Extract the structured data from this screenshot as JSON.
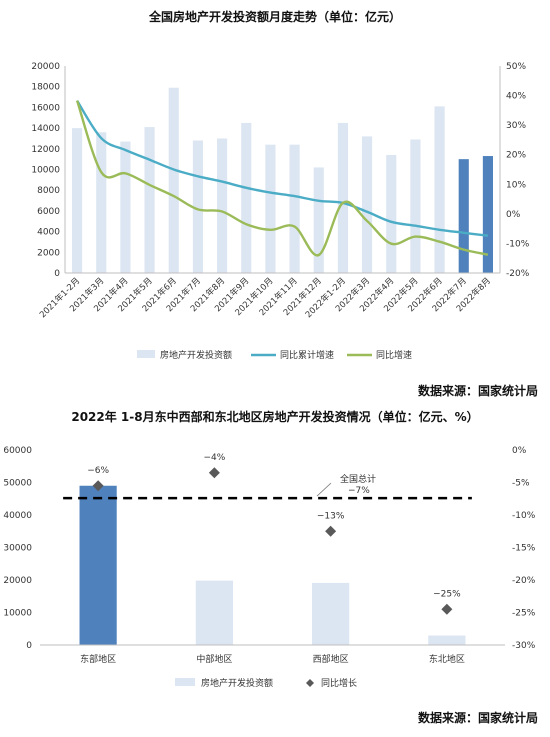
{
  "chart_data": [
    {
      "type": "bar",
      "title": "全国房地产开发投资额月度走势（单位：亿元）",
      "source": "数据来源：国家统计局",
      "categories": [
        "2021年1-2月",
        "2021年3月",
        "2021年4月",
        "2021年5月",
        "2021年6月",
        "2021年7月",
        "2021年8月",
        "2021年9月",
        "2021年10月",
        "2021年11月",
        "2021年12月",
        "2022年1-2月",
        "2022年3月",
        "2022年4月",
        "2022年5月",
        "2022年6月",
        "2022年7月",
        "2022年8月"
      ],
      "y_left": {
        "min": 0,
        "max": 20000,
        "step": 2000
      },
      "y_right": {
        "min": -20,
        "max": 50,
        "step": 10,
        "unit": "%"
      },
      "series": [
        {
          "name": "房地产开发投资额",
          "kind": "bar",
          "axis": "left",
          "values": [
            14000,
            13600,
            12700,
            14100,
            17900,
            12800,
            13000,
            14500,
            12400,
            12400,
            10200,
            14500,
            13200,
            11400,
            12900,
            16100,
            11000,
            11300
          ],
          "colors": [
            "#dce6f2",
            "#dce6f2",
            "#dce6f2",
            "#dce6f2",
            "#dce6f2",
            "#dce6f2",
            "#dce6f2",
            "#dce6f2",
            "#dce6f2",
            "#dce6f2",
            "#dce6f2",
            "#dce6f2",
            "#dce6f2",
            "#dce6f2",
            "#dce6f2",
            "#dce6f2",
            "#4f81bd",
            "#4f81bd"
          ]
        },
        {
          "name": "同比累计增速",
          "kind": "line",
          "axis": "right",
          "color": "#4bacc6",
          "values": [
            38.3,
            25.6,
            21.6,
            18.3,
            15.0,
            12.7,
            10.9,
            8.8,
            7.2,
            6.0,
            4.4,
            3.7,
            0.7,
            -2.7,
            -4.0,
            -5.4,
            -6.4,
            -7.4
          ]
        },
        {
          "name": "同比增速",
          "kind": "line",
          "axis": "right",
          "color": "#9bbb59",
          "values": [
            38.3,
            14.1,
            13.7,
            9.8,
            6.0,
            1.5,
            0.8,
            -3.5,
            -5.4,
            -4.3,
            -13.9,
            3.7,
            -2.4,
            -10.1,
            -7.7,
            -9.4,
            -12.1,
            -13.8
          ]
        }
      ]
    },
    {
      "type": "bar",
      "title": "2022年 1-8月东中西部和东北地区房地产开发投资情况（单位：亿元、%）",
      "source": "数据来源：国家统计局",
      "categories": [
        "东部地区",
        "中部地区",
        "西部地区",
        "东北地区"
      ],
      "y_left": {
        "min": 0,
        "max": 60000,
        "step": 10000
      },
      "y_right": {
        "min": -30,
        "max": 0,
        "step": 5,
        "unit": "%"
      },
      "series": [
        {
          "name": "房地产开发投资额",
          "kind": "bar",
          "axis": "left",
          "values": [
            49000,
            19800,
            19100,
            2900
          ],
          "colors": [
            "#4f81bd",
            "#dce6f2",
            "#dce6f2",
            "#dce6f2"
          ]
        },
        {
          "name": "同比增长",
          "kind": "marker",
          "axis": "right",
          "color": "#595959",
          "values": [
            -5.5,
            -3.5,
            -12.5,
            -24.5
          ],
          "labels": [
            "−6%",
            "−4%",
            "−13%",
            "−25%"
          ]
        }
      ],
      "reference_line": {
        "value": -7.4,
        "label_line1": "全国总计",
        "label_line2": "−7%"
      }
    }
  ]
}
